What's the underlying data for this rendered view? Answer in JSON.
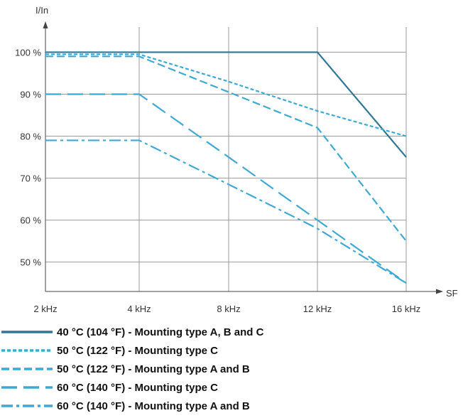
{
  "chart_data": {
    "type": "line",
    "xlabel": "SF",
    "ylabel": "I/In",
    "x_ticks": [
      "2 kHz",
      "4 kHz",
      "8 kHz",
      "12 kHz",
      "16 kHz"
    ],
    "x_tick_values": [
      2,
      4,
      8,
      12,
      16
    ],
    "y_ticks": [
      "100 %",
      "90 %",
      "80 %",
      "70 %",
      "60 %",
      "50 %"
    ],
    "y_tick_values": [
      100,
      90,
      80,
      70,
      60,
      50
    ],
    "ylim": [
      43,
      106
    ],
    "grid": true,
    "legend_position": "bottom",
    "series": [
      {
        "name": "40 °C (104 °F) - Mounting type A, B and C",
        "style": "solid",
        "color": "#2e7796",
        "points": [
          [
            2,
            100
          ],
          [
            4,
            100
          ],
          [
            8,
            100
          ],
          [
            12,
            100
          ],
          [
            16,
            75
          ]
        ]
      },
      {
        "name": "50 °C (122 °F) - Mounting type C",
        "style": "dotted",
        "color": "#3fa9d6",
        "points": [
          [
            2,
            99.5
          ],
          [
            4,
            99.5
          ],
          [
            8,
            93
          ],
          [
            12,
            86
          ],
          [
            16,
            80
          ]
        ]
      },
      {
        "name": "50 °C (122 °F) - Mounting type A and B",
        "style": "dashed",
        "color": "#3fa9d6",
        "points": [
          [
            2,
            99
          ],
          [
            4,
            99
          ],
          [
            8,
            90.5
          ],
          [
            12,
            82
          ],
          [
            16,
            55
          ]
        ]
      },
      {
        "name": "60 °C (140 °F) - Mounting type C",
        "style": "longdash",
        "color": "#3fa9d6",
        "points": [
          [
            2,
            90
          ],
          [
            4,
            90
          ],
          [
            8,
            75
          ],
          [
            12,
            60
          ],
          [
            16,
            45
          ]
        ]
      },
      {
        "name": "60 °C (140 °F) - Mounting type A and B",
        "style": "dashdot",
        "color": "#3fa9d6",
        "points": [
          [
            2,
            79
          ],
          [
            4,
            79
          ],
          [
            8,
            68.5
          ],
          [
            12,
            58
          ],
          [
            16,
            45
          ]
        ]
      }
    ]
  }
}
